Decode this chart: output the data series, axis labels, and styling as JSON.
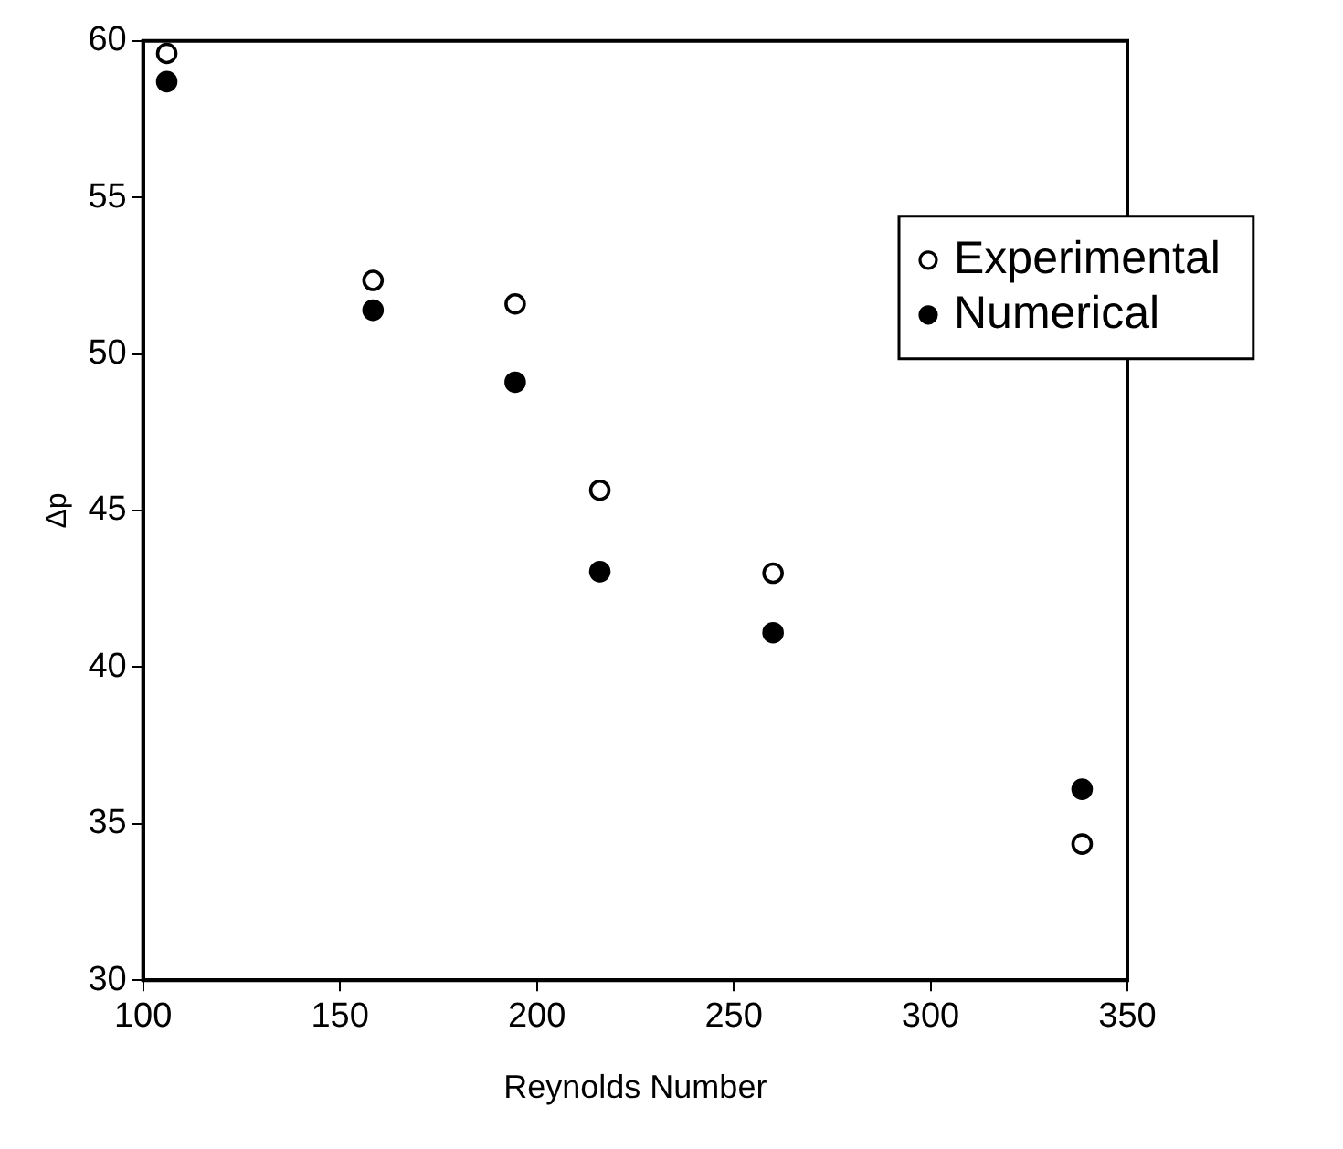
{
  "chart_data": {
    "type": "scatter",
    "xlabel": "Reynolds Number",
    "ylabel": "Δp",
    "xlim": [
      100,
      350
    ],
    "xticks": [
      100,
      150,
      200,
      250,
      300,
      350
    ],
    "ylim": [
      30,
      60
    ],
    "yticks": [
      30,
      35,
      40,
      45,
      50,
      55,
      60
    ],
    "grid": false,
    "legend": "right",
    "marker": "circle",
    "series": [
      {
        "name": "Experimental",
        "color": "#ffffff",
        "x": [
          106,
          158.4,
          194.5,
          216,
          260,
          338.5
        ],
        "values": [
          59.6,
          52.35,
          51.6,
          45.65,
          43.0,
          34.35
        ]
      },
      {
        "name": "Numerical",
        "color": "#000000",
        "x": [
          106,
          158.4,
          194.5,
          216,
          260,
          338.5
        ],
        "values": [
          58.7,
          51.4,
          49.1,
          43.05,
          41.1,
          36.1
        ]
      }
    ]
  }
}
